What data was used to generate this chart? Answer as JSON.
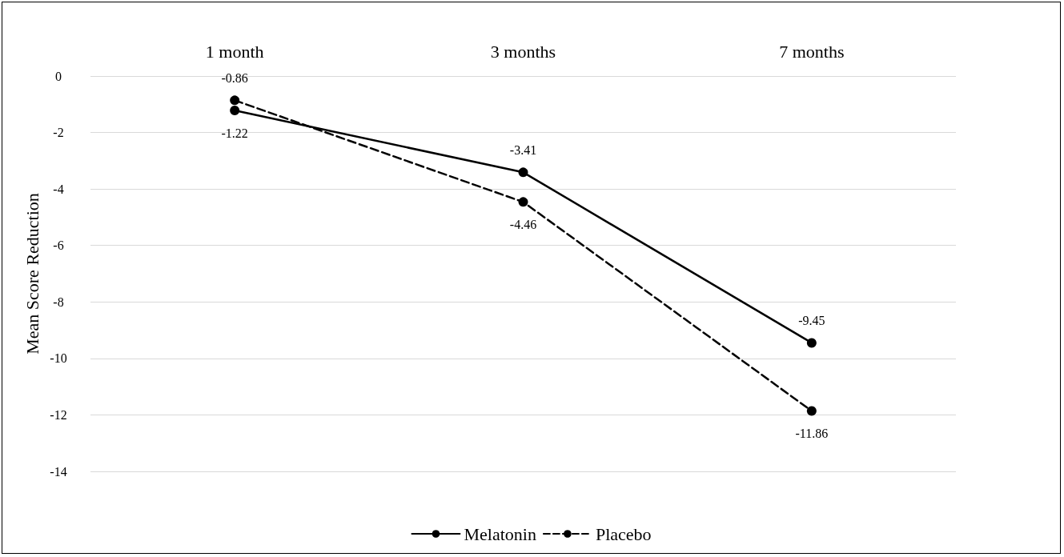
{
  "chart_data": {
    "type": "line",
    "ylabel": "Mean Score Reduction",
    "categories": [
      "1 month",
      "3 months",
      "7 months"
    ],
    "series": [
      {
        "name": "Melatonin",
        "color": "#000000",
        "values": [
          -1.22,
          -3.41,
          -9.45
        ],
        "line_style": "solid"
      },
      {
        "name": "Placebo",
        "color": "#000000",
        "values": [
          -0.86,
          -4.46,
          -11.86
        ],
        "line_style": "dashed"
      }
    ],
    "ylim": [
      -14,
      0
    ],
    "yticks": [
      -14,
      -12,
      -10,
      -8,
      -6,
      -4,
      -2,
      0
    ],
    "grid": "y",
    "legend": "bottom",
    "marker": "circle",
    "data_labels": true
  }
}
